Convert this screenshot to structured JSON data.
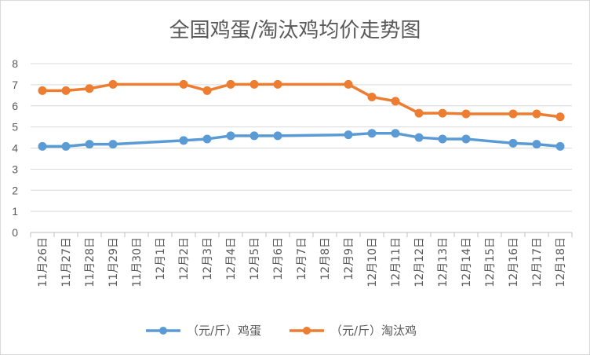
{
  "chart_data": {
    "type": "line",
    "title": "全国鸡蛋/淘汰鸡均价走势图",
    "xlabel": "",
    "ylabel": "",
    "ylim": [
      0,
      8
    ],
    "yticks": [
      0,
      1,
      2,
      3,
      4,
      5,
      6,
      7,
      8
    ],
    "grid": true,
    "legend_position": "bottom",
    "categories": [
      "11月26日",
      "11月27日",
      "11月28日",
      "11月29日",
      "11月30日",
      "12月1日",
      "12月2日",
      "12月3日",
      "12月4日",
      "12月5日",
      "12月6日",
      "12月7日",
      "12月8日",
      "12月9日",
      "12月10日",
      "12月11日",
      "12月12日",
      "12月13日",
      "12月14日",
      "12月15日",
      "12月16日",
      "12月17日",
      "12月18日"
    ],
    "series": [
      {
        "name": "（元/斤）鸡蛋",
        "color": "#5b9bd5",
        "values": [
          4.08,
          4.08,
          4.18,
          4.18,
          null,
          null,
          4.36,
          4.43,
          4.58,
          4.58,
          4.58,
          null,
          null,
          4.63,
          4.7,
          4.7,
          4.5,
          4.43,
          4.43,
          null,
          4.23,
          4.18,
          4.08
        ]
      },
      {
        "name": "（元/斤）淘汰鸡",
        "color": "#ed7d31",
        "values": [
          6.72,
          6.72,
          6.82,
          7.02,
          null,
          null,
          7.02,
          6.72,
          7.02,
          7.02,
          7.02,
          null,
          null,
          7.02,
          6.42,
          6.22,
          5.65,
          5.65,
          5.62,
          null,
          5.62,
          5.62,
          5.48
        ]
      }
    ]
  }
}
